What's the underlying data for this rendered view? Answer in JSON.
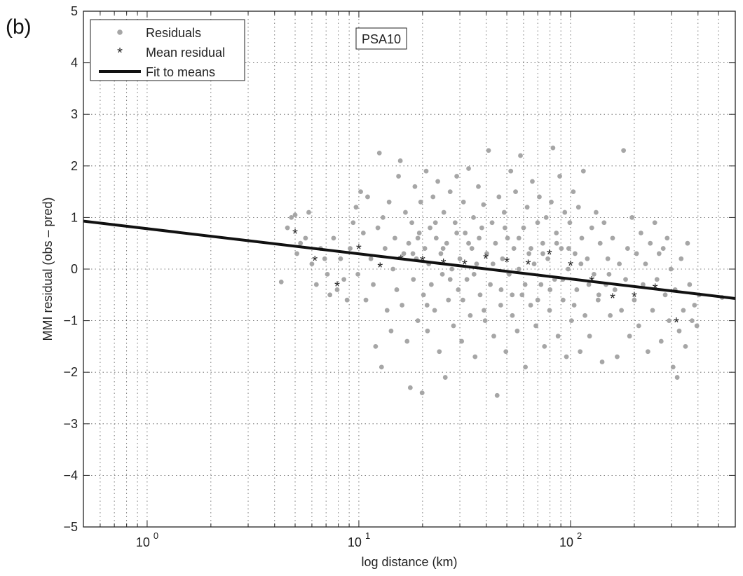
{
  "panel_label": "(b)",
  "chart_data": {
    "type": "scatter",
    "xscale": "log",
    "xlim": [
      0.5,
      600
    ],
    "ylim": [
      -5,
      5
    ],
    "grid": true,
    "xlabel": "log distance (km)",
    "ylabel": "MMI residual (obs – pred)",
    "annotation": "PSA10",
    "legend_position": "top-left",
    "x_ticks": [
      1,
      10,
      100
    ],
    "x_tick_labels": [
      {
        "base": "10",
        "exp": "0"
      },
      {
        "base": "10",
        "exp": "1"
      },
      {
        "base": "10",
        "exp": "2"
      }
    ],
    "y_ticks": [
      -5,
      -4,
      -3,
      -2,
      -1,
      0,
      1,
      2,
      3,
      4,
      5
    ],
    "y_tick_labels": [
      "−5",
      "−4",
      "−3",
      "−2",
      "−1",
      "0",
      "1",
      "2",
      "3",
      "4",
      "5"
    ],
    "colors": {
      "residuals": "#a6a6a6",
      "mean": "#111111",
      "fit": "#111111"
    },
    "series": [
      {
        "name": "Residuals",
        "marker": "dot",
        "points": [
          [
            4.3,
            -0.25
          ],
          [
            4.6,
            0.8
          ],
          [
            4.8,
            1.0
          ],
          [
            5.0,
            1.05
          ],
          [
            5.1,
            0.3
          ],
          [
            5.3,
            0.5
          ],
          [
            5.6,
            0.6
          ],
          [
            5.8,
            1.1
          ],
          [
            6.0,
            0.1
          ],
          [
            6.3,
            -0.3
          ],
          [
            6.6,
            0.4
          ],
          [
            6.9,
            0.2
          ],
          [
            7.1,
            -0.1
          ],
          [
            7.3,
            -0.5
          ],
          [
            7.6,
            0.6
          ],
          [
            7.9,
            -0.4
          ],
          [
            8.2,
            0.2
          ],
          [
            8.5,
            -0.2
          ],
          [
            8.8,
            -0.6
          ],
          [
            9.1,
            0.4
          ],
          [
            9.4,
            0.9
          ],
          [
            9.7,
            1.2
          ],
          [
            9.9,
            -0.1
          ],
          [
            10.2,
            1.5
          ],
          [
            10.5,
            0.7
          ],
          [
            10.8,
            -0.6
          ],
          [
            11.0,
            1.4
          ],
          [
            11.4,
            0.2
          ],
          [
            11.7,
            -0.3
          ],
          [
            12.0,
            -1.5
          ],
          [
            12.3,
            0.8
          ],
          [
            12.5,
            2.25
          ],
          [
            12.8,
            -1.9
          ],
          [
            13.0,
            1.0
          ],
          [
            13.3,
            0.4
          ],
          [
            13.6,
            -0.8
          ],
          [
            13.9,
            1.3
          ],
          [
            14.2,
            -1.2
          ],
          [
            14.5,
            0.0
          ],
          [
            14.8,
            0.6
          ],
          [
            15.1,
            -0.4
          ],
          [
            15.4,
            1.8
          ],
          [
            15.7,
            2.1
          ],
          [
            16.0,
            -0.7
          ],
          [
            16.3,
            0.3
          ],
          [
            16.6,
            1.1
          ],
          [
            16.9,
            -1.4
          ],
          [
            17.2,
            0.5
          ],
          [
            17.5,
            -2.3
          ],
          [
            17.8,
            0.9
          ],
          [
            18.1,
            -0.2
          ],
          [
            18.4,
            1.6
          ],
          [
            18.7,
            0.2
          ],
          [
            19.0,
            -1.0
          ],
          [
            19.3,
            0.7
          ],
          [
            19.6,
            1.3
          ],
          [
            19.9,
            -2.4
          ],
          [
            20.2,
            -0.5
          ],
          [
            20.5,
            0.4
          ],
          [
            20.8,
            1.9
          ],
          [
            21.1,
            -1.2
          ],
          [
            21.4,
            0.1
          ],
          [
            21.7,
            0.8
          ],
          [
            22.0,
            -0.3
          ],
          [
            22.4,
            1.4
          ],
          [
            22.8,
            -0.8
          ],
          [
            23.2,
            0.6
          ],
          [
            23.6,
            1.7
          ],
          [
            24.0,
            -1.6
          ],
          [
            24.4,
            0.3
          ],
          [
            24.8,
            -0.1
          ],
          [
            25.2,
            1.1
          ],
          [
            25.6,
            -2.1
          ],
          [
            26.0,
            0.5
          ],
          [
            26.5,
            -0.6
          ],
          [
            27.0,
            1.5
          ],
          [
            27.5,
            0.0
          ],
          [
            28.0,
            -1.1
          ],
          [
            28.5,
            0.9
          ],
          [
            29.0,
            1.8
          ],
          [
            29.5,
            -0.4
          ],
          [
            30.0,
            0.2
          ],
          [
            30.6,
            -1.4
          ],
          [
            31.2,
            1.3
          ],
          [
            31.8,
            0.7
          ],
          [
            32.4,
            -0.2
          ],
          [
            33.0,
            1.95
          ],
          [
            33.6,
            -0.9
          ],
          [
            34.2,
            0.4
          ],
          [
            34.8,
            1.0
          ],
          [
            35.4,
            -1.7
          ],
          [
            36.0,
            0.1
          ],
          [
            36.7,
            1.6
          ],
          [
            37.4,
            -0.5
          ],
          [
            38.1,
            0.8
          ],
          [
            38.8,
            1.25
          ],
          [
            39.5,
            -1.0
          ],
          [
            40.2,
            0.3
          ],
          [
            41.0,
            2.3
          ],
          [
            41.8,
            -0.3
          ],
          [
            42.6,
            0.9
          ],
          [
            43.4,
            -1.3
          ],
          [
            44.2,
            0.5
          ],
          [
            45.0,
            -2.45
          ],
          [
            45.9,
            1.4
          ],
          [
            46.8,
            -0.7
          ],
          [
            47.7,
            0.2
          ],
          [
            48.6,
            1.1
          ],
          [
            49.5,
            -1.6
          ],
          [
            50.4,
            0.6
          ],
          [
            51.3,
            -0.1
          ],
          [
            52.2,
            1.9
          ],
          [
            53.1,
            -0.9
          ],
          [
            54.0,
            0.4
          ],
          [
            55.0,
            1.5
          ],
          [
            56.0,
            -1.2
          ],
          [
            57.0,
            0.0
          ],
          [
            58.0,
            2.2
          ],
          [
            59.0,
            -0.5
          ],
          [
            60.0,
            0.8
          ],
          [
            61.2,
            -1.9
          ],
          [
            62.4,
            1.2
          ],
          [
            63.6,
            0.3
          ],
          [
            64.8,
            -0.7
          ],
          [
            66.0,
            1.7
          ],
          [
            67.3,
            0.1
          ],
          [
            68.6,
            -1.1
          ],
          [
            69.9,
            0.9
          ],
          [
            71.2,
            1.4
          ],
          [
            72.5,
            -0.3
          ],
          [
            73.9,
            0.5
          ],
          [
            75.3,
            -1.5
          ],
          [
            76.7,
            1.0
          ],
          [
            78.1,
            0.2
          ],
          [
            79.6,
            -0.8
          ],
          [
            81.1,
            1.3
          ],
          [
            82.6,
            2.35
          ],
          [
            84.1,
            -0.2
          ],
          [
            85.7,
            0.7
          ],
          [
            87.3,
            -1.3
          ],
          [
            88.9,
            1.8
          ],
          [
            90.5,
            0.4
          ],
          [
            92.2,
            -0.6
          ],
          [
            93.9,
            1.1
          ],
          [
            95.6,
            -1.7
          ],
          [
            97.4,
            0.0
          ],
          [
            99.2,
            0.9
          ],
          [
            101.0,
            -1.0
          ],
          [
            103.0,
            1.5
          ],
          [
            105.0,
            0.3
          ],
          [
            107.0,
            -0.4
          ],
          [
            109.0,
            1.2
          ],
          [
            111.0,
            -1.6
          ],
          [
            113.0,
            0.6
          ],
          [
            115.0,
            1.9
          ],
          [
            117.0,
            -0.9
          ],
          [
            120.0,
            0.2
          ],
          [
            123.0,
            -1.3
          ],
          [
            126.0,
            0.8
          ],
          [
            129.0,
            -0.1
          ],
          [
            132.0,
            1.1
          ],
          [
            135.0,
            -0.6
          ],
          [
            138.0,
            0.5
          ],
          [
            141.0,
            -1.8
          ],
          [
            144.0,
            0.9
          ],
          [
            147.0,
            -0.3
          ],
          [
            150.0,
            0.2
          ],
          [
            154.0,
            -0.9
          ],
          [
            158.0,
            0.6
          ],
          [
            162.0,
            -0.4
          ],
          [
            166.0,
            -1.7
          ],
          [
            170.0,
            0.1
          ],
          [
            174.0,
            -0.8
          ],
          [
            178.0,
            2.3
          ],
          [
            182.0,
            -0.2
          ],
          [
            186.0,
            0.4
          ],
          [
            190.0,
            -1.3
          ],
          [
            195.0,
            1.0
          ],
          [
            200.0,
            -0.6
          ],
          [
            205.0,
            0.3
          ],
          [
            210.0,
            -1.1
          ],
          [
            215.0,
            0.7
          ],
          [
            220.0,
            -0.3
          ],
          [
            226.0,
            0.1
          ],
          [
            232.0,
            -1.6
          ],
          [
            238.0,
            0.5
          ],
          [
            244.0,
            -0.8
          ],
          [
            250.0,
            0.9
          ],
          [
            256.0,
            -0.2
          ],
          [
            262.0,
            0.3
          ],
          [
            268.0,
            -1.4
          ],
          [
            274.0,
            0.4
          ],
          [
            280.0,
            -0.5
          ],
          [
            286.0,
            0.6
          ],
          [
            292.0,
            -1.0
          ],
          [
            298.0,
            0.0
          ],
          [
            305.0,
            -1.9
          ],
          [
            312.0,
            -0.4
          ],
          [
            319.0,
            -2.1
          ],
          [
            326.0,
            -1.2
          ],
          [
            333.0,
            0.2
          ],
          [
            341.0,
            -0.8
          ],
          [
            349.0,
            -1.5
          ],
          [
            357.0,
            0.5
          ],
          [
            365.0,
            -0.3
          ],
          [
            375.0,
            -1.0
          ],
          [
            385.0,
            -0.7
          ],
          [
            395.0,
            -1.1
          ],
          [
            405.0,
            -0.5
          ],
          [
            520.0,
            -0.55
          ],
          [
            18.0,
            0.3
          ],
          [
            19.0,
            0.6
          ],
          [
            21.0,
            -0.7
          ],
          [
            23.0,
            0.9
          ],
          [
            25.0,
            0.4
          ],
          [
            27.0,
            -0.2
          ],
          [
            29.0,
            0.7
          ],
          [
            31.0,
            -0.6
          ],
          [
            33.0,
            0.5
          ],
          [
            35.0,
            -0.1
          ],
          [
            37.0,
            0.6
          ],
          [
            39.0,
            -0.8
          ],
          [
            43.0,
            0.1
          ],
          [
            47.0,
            -0.4
          ],
          [
            49.0,
            0.8
          ],
          [
            53.0,
            -0.5
          ],
          [
            57.0,
            0.6
          ],
          [
            61.0,
            -0.3
          ],
          [
            65.0,
            0.4
          ],
          [
            70.0,
            -0.6
          ],
          [
            74.0,
            0.3
          ],
          [
            80.0,
            -0.4
          ],
          [
            86.0,
            0.5
          ],
          [
            92.0,
            -0.2
          ],
          [
            98.0,
            0.4
          ],
          [
            104.0,
            -0.7
          ],
          [
            112.0,
            0.1
          ],
          [
            122.0,
            -0.3
          ],
          [
            136.0,
            -0.5
          ],
          [
            152.0,
            -0.1
          ]
        ]
      },
      {
        "name": "Mean residual",
        "marker": "asterisk",
        "points": [
          [
            5.0,
            0.7
          ],
          [
            6.2,
            0.18
          ],
          [
            7.9,
            -0.32
          ],
          [
            10.0,
            0.4
          ],
          [
            12.6,
            0.05
          ],
          [
            15.8,
            0.2
          ],
          [
            20.0,
            0.18
          ],
          [
            25.1,
            0.12
          ],
          [
            31.6,
            0.1
          ],
          [
            39.8,
            0.22
          ],
          [
            50.1,
            0.15
          ],
          [
            63.1,
            0.1
          ],
          [
            79.4,
            0.3
          ],
          [
            100.0,
            0.08
          ],
          [
            126.0,
            -0.22
          ],
          [
            158.0,
            -0.55
          ],
          [
            200.0,
            -0.52
          ],
          [
            251.0,
            -0.36
          ],
          [
            316.0,
            -1.02
          ]
        ]
      },
      {
        "name": "Fit to means",
        "marker": "line",
        "points": [
          [
            0.5,
            0.93
          ],
          [
            600,
            -0.57
          ]
        ]
      }
    ]
  }
}
